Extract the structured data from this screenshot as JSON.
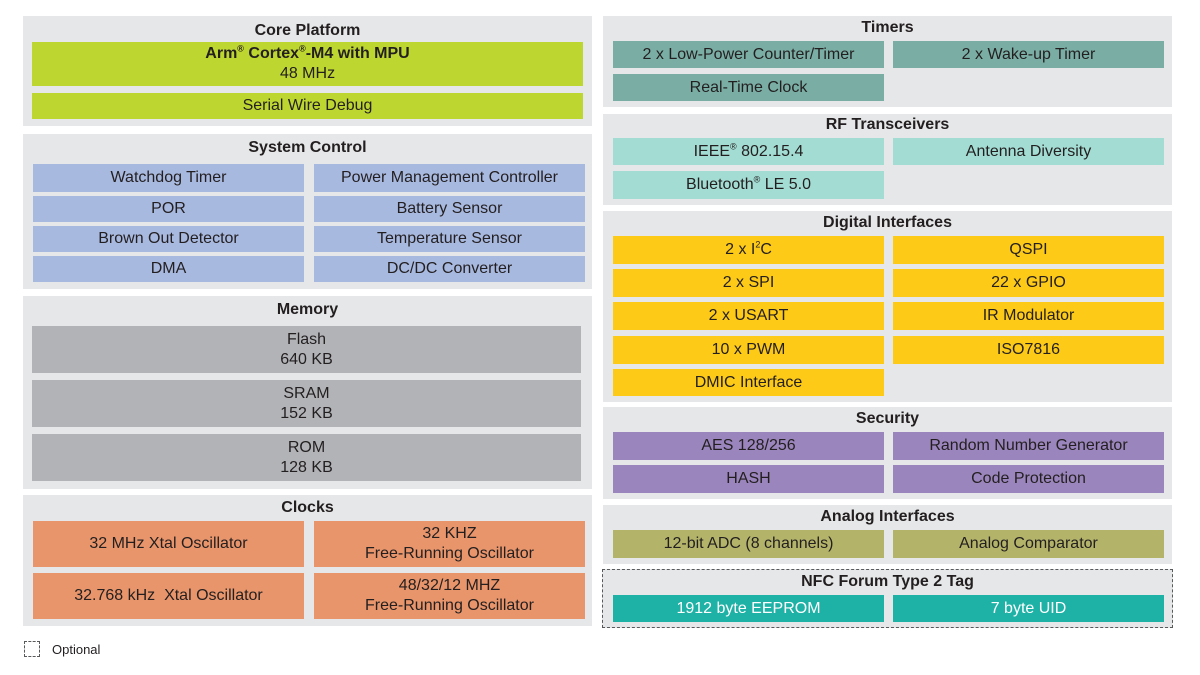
{
  "core_platform": {
    "title": "Core Platform",
    "cpu_prefix": "Arm",
    "cpu_mid": "Cortex",
    "cpu_suffix": "-M4 with MPU",
    "reg": "®",
    "cpu_freq": "48 MHz",
    "debug": "Serial Wire Debug"
  },
  "system_control": {
    "title": "System Control",
    "items": [
      "Watchdog Timer",
      "Power Management Controller",
      "POR",
      "Battery Sensor",
      "Brown Out Detector",
      "Temperature Sensor",
      "DMA",
      "DC/DC Converter"
    ]
  },
  "memory": {
    "title": "Memory",
    "items": [
      {
        "name": "Flash",
        "size": "640 KB"
      },
      {
        "name": "SRAM",
        "size": "152 KB"
      },
      {
        "name": "ROM",
        "size": "128 KB"
      }
    ]
  },
  "clocks": {
    "title": "Clocks",
    "items": [
      {
        "line1": "32 MHz Xtal Oscillator",
        "line2": ""
      },
      {
        "line1": "32 KHZ",
        "line2": "Free-Running Oscillator"
      },
      {
        "line1": "32.768 kHz  Xtal Oscillator",
        "line2": ""
      },
      {
        "line1": "48/32/12 MHZ",
        "line2": "Free-Running Oscillator"
      }
    ]
  },
  "timers": {
    "title": "Timers",
    "items": [
      "2 x Low-Power Counter/Timer",
      "2 x Wake-up Timer",
      "Real-Time Clock"
    ]
  },
  "rf": {
    "title": "RF Transceivers",
    "ieee_prefix": "IEEE",
    "ieee_suffix": " 802.15.4",
    "antenna": "Antenna Diversity",
    "bt_prefix": "Bluetooth",
    "bt_suffix": " LE 5.0",
    "reg": "®"
  },
  "digital": {
    "title": "Digital Interfaces",
    "i2c_prefix": "2 x I",
    "i2c_sup": "2",
    "i2c_suffix": "C",
    "items": [
      "QSPI",
      "2 x SPI",
      "22 x GPIO",
      "2 x USART",
      "IR Modulator",
      "10 x PWM",
      "ISO7816",
      "DMIC Interface"
    ]
  },
  "security": {
    "title": "Security",
    "items": [
      "AES 128/256",
      "Random Number Generator",
      "HASH",
      "Code Protection"
    ]
  },
  "analog": {
    "title": "Analog Interfaces",
    "items": [
      "12-bit ADC (8 channels)",
      "Analog Comparator"
    ]
  },
  "nfc": {
    "title": "NFC Forum Type 2 Tag",
    "items": [
      "1912 byte EEPROM",
      "7 byte UID"
    ]
  },
  "legend": {
    "optional_label": "Optional"
  },
  "colors": {
    "panel": "#e6e7e8",
    "lime": "#bed630",
    "blue": "#a8b9e0",
    "gray": "#b1b3b6",
    "orange": "#e8956b",
    "teal": "#7aaea5",
    "aqua": "#a3dcd3",
    "yellow": "#fdca18",
    "purple": "#9b85bd",
    "olive": "#b3b46a",
    "cyan": "#1eb2a6"
  }
}
